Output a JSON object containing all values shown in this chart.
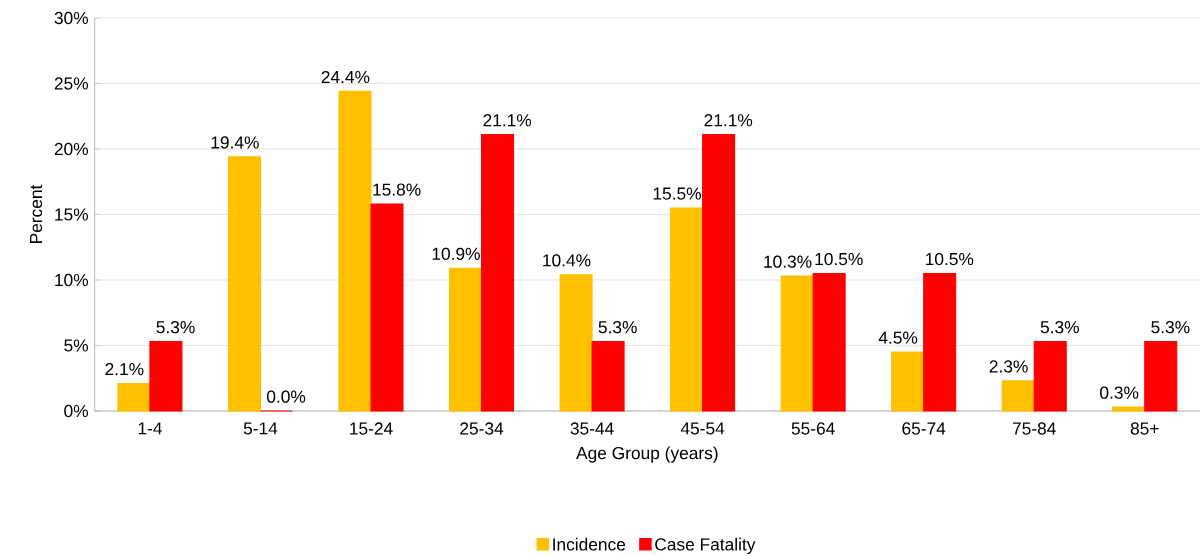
{
  "chart_data": {
    "type": "bar",
    "xlabel": "Age Group (years)",
    "ylabel": "Percent",
    "categories": [
      "1-4",
      "5-14",
      "15-24",
      "25-34",
      "35-44",
      "45-54",
      "55-64",
      "65-74",
      "75-84",
      "85+"
    ],
    "series": [
      {
        "name": "Incidence",
        "color": "#ffc000",
        "values": [
          2.1,
          19.4,
          24.4,
          10.9,
          10.4,
          15.5,
          10.3,
          4.5,
          2.3,
          0.3
        ],
        "value_labels": [
          "2.1%",
          "19.4%",
          "24.4%",
          "10.9%",
          "10.4%",
          "15.5%",
          "10.3%",
          "4.5%",
          "2.3%",
          "0.3%"
        ]
      },
      {
        "name": "Case Fatality",
        "color": "#ff0000",
        "values": [
          5.3,
          0.0,
          15.8,
          21.1,
          5.3,
          21.1,
          10.5,
          10.5,
          5.3,
          5.3
        ],
        "value_labels": [
          "5.3%",
          "0.0%",
          "15.8%",
          "21.1%",
          "5.3%",
          "21.1%",
          "10.5%",
          "10.5%",
          "5.3%",
          "5.3%"
        ]
      }
    ],
    "ylim": [
      0,
      30
    ],
    "yticks": [
      {
        "value": 0,
        "label": "0%"
      },
      {
        "value": 5,
        "label": "5%"
      },
      {
        "value": 10,
        "label": "10%"
      },
      {
        "value": 15,
        "label": "15%"
      },
      {
        "value": 20,
        "label": "20%"
      },
      {
        "value": 25,
        "label": "25%"
      },
      {
        "value": 30,
        "label": "30%"
      }
    ],
    "grid": "y",
    "legend": "bottom"
  }
}
